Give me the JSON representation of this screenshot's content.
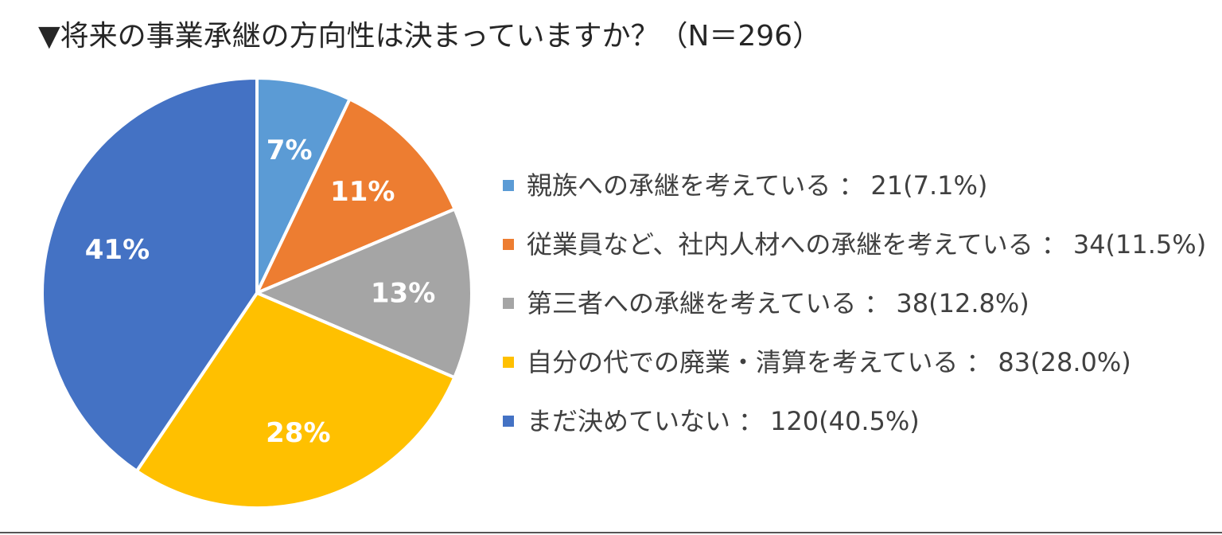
{
  "title": "▼将来の事業承継の方向性は決まっていますか？（N＝296）",
  "chart_data": {
    "type": "pie",
    "title": "▼将来の事業承継の方向性は決まっていますか？（N＝296）",
    "total": 296,
    "slices": [
      {
        "name": "親族への承継を考えている",
        "count": 21,
        "percent_text": "7.1%",
        "slice_label": "7%",
        "value": 7.1,
        "color": "#5B9BD5"
      },
      {
        "name": "従業員など、社内人材への承継を考えている",
        "count": 34,
        "percent_text": "11.5%",
        "slice_label": "11%",
        "value": 11.5,
        "color": "#ED7D31"
      },
      {
        "name": "第三者への承継を考えている",
        "count": 38,
        "percent_text": "12.8%",
        "slice_label": "13%",
        "value": 12.8,
        "color": "#A5A5A5"
      },
      {
        "name": "自分の代での廃業・清算を考えている",
        "count": 83,
        "percent_text": "28.0%",
        "slice_label": "28%",
        "value": 28.0,
        "color": "#FFC000"
      },
      {
        "name": "まだ決めていない",
        "count": 120,
        "percent_text": "40.5%",
        "slice_label": "41%",
        "value": 40.5,
        "color": "#4472C4"
      }
    ],
    "legend_separator": "：",
    "legend_position": "right",
    "start_angle": "12-o'clock",
    "direction": "clockwise"
  }
}
